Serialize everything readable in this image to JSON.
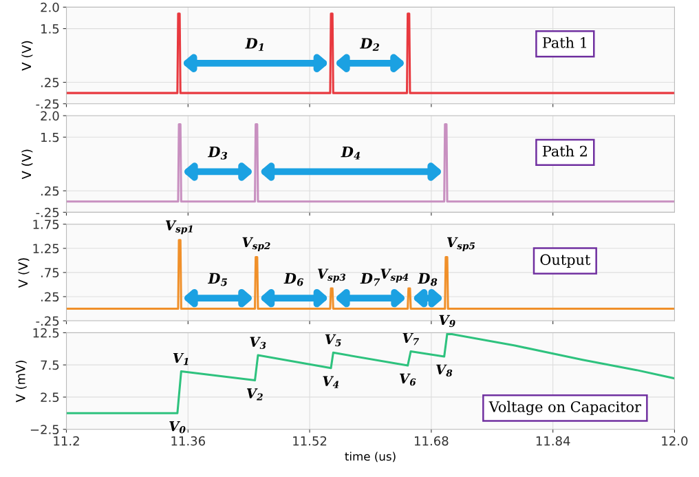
{
  "chart_data": [
    {
      "type": "line",
      "ylabel": "V (V)",
      "xlim": [
        11.2,
        12.0
      ],
      "xticks": [
        11.2,
        11.36,
        11.52,
        11.68,
        11.84
      ],
      "ylim": [
        -0.25,
        2.0
      ],
      "yticks": [
        {
          "value": -0.25,
          "label": "-.25"
        },
        {
          "value": 0.25,
          "label": ".25"
        },
        1.5,
        {
          "value": 2.0,
          "label": "2.0"
        }
      ],
      "tick_labels": "y",
      "grid": true,
      "series": [
        {
          "color": "#e8393f",
          "x": [
            11.2,
            11.346,
            11.347,
            11.349,
            11.35,
            11.547,
            11.548,
            11.55,
            11.551,
            11.648,
            11.649,
            11.651,
            11.652,
            12.0
          ],
          "values": [
            0,
            0,
            1.85,
            1.85,
            0,
            0,
            1.85,
            1.85,
            0,
            0,
            1.85,
            1.85,
            0,
            0
          ]
        }
      ],
      "annotations": [
        "D$_{1}$",
        "D$_{2}$",
        "Path 1"
      ]
    },
    {
      "type": "line",
      "ylabel": "V (V)",
      "xlim": [
        11.2,
        12.0
      ],
      "xticks": [
        11.2,
        11.36,
        11.52,
        11.68,
        11.84
      ],
      "ylim": [
        -0.25,
        2.0
      ],
      "yticks": [
        {
          "value": -0.25,
          "label": "-.25"
        },
        {
          "value": 0.25,
          "label": ".25"
        },
        1.5,
        {
          "value": 2.0,
          "label": "2.0"
        }
      ],
      "tick_labels": "y",
      "grid": true,
      "series": [
        {
          "color": "#c890c0",
          "x": [
            11.2,
            11.347,
            11.348,
            11.35,
            11.351,
            11.448,
            11.449,
            11.451,
            11.452,
            11.697,
            11.698,
            11.7,
            11.701,
            12.0
          ],
          "values": [
            0,
            0,
            1.8,
            1.8,
            0,
            0,
            1.8,
            1.8,
            0,
            0,
            1.8,
            1.8,
            0,
            0
          ]
        }
      ],
      "annotations": [
        "D$_{3}$",
        "D$_{4}$",
        "Path 2"
      ]
    },
    {
      "type": "line",
      "ylabel": "V (V)",
      "xlim": [
        11.2,
        12.0
      ],
      "xticks": [
        11.2,
        11.36,
        11.52,
        11.68,
        11.84
      ],
      "ylim": [
        -0.25,
        1.75
      ],
      "yticks": [
        {
          "value": -0.25,
          "label": "-.25"
        },
        {
          "value": 0.25,
          "label": ".25"
        },
        {
          "value": 0.75,
          "label": ".75"
        },
        1.25,
        1.75
      ],
      "tick_labels": "y",
      "grid": true,
      "series": [
        {
          "color": "#f0902a",
          "x": [
            11.2,
            11.347,
            11.348,
            11.35,
            11.351,
            11.448,
            11.449,
            11.451,
            11.452,
            11.547,
            11.548,
            11.55,
            11.551,
            11.649,
            11.65,
            11.652,
            11.653,
            11.698,
            11.699,
            11.701,
            11.702,
            12.0
          ],
          "values": [
            0,
            0,
            1.42,
            1.42,
            0,
            0,
            1.07,
            1.07,
            0,
            0,
            0.42,
            0.42,
            0,
            0,
            0.42,
            0.42,
            0,
            0,
            1.07,
            1.07,
            0,
            0
          ]
        }
      ],
      "annotations": [
        {
          "text": "V$_{sp1}$",
          "x": 11.349,
          "y": 1.42
        },
        {
          "text": "V$_{sp2}$",
          "x": 11.45,
          "y": 1.07
        },
        {
          "text": "V$_{sp3}$",
          "x": 11.549,
          "y": 0.42
        },
        {
          "text": "V$_{sp4}$",
          "x": 11.651,
          "y": 0.42
        },
        {
          "text": "V$_{sp5}$",
          "x": 11.7,
          "y": 1.07
        },
        "D$_{5}$",
        "D$_{6}$",
        "D$_{7}$",
        "D$_{8}$",
        "Output"
      ]
    },
    {
      "type": "line",
      "ylabel": "V (mV)",
      "xlabel": "time (us)",
      "xlim": [
        11.2,
        12.0
      ],
      "xticks": [
        11.2,
        11.36,
        11.52,
        11.68,
        11.84,
        {
          "value": 12.0,
          "label": "12.0"
        }
      ],
      "ylim": [
        -2.5,
        12.5
      ],
      "yticks": [
        {
          "value": -2.5,
          "label": "−2.5"
        },
        2.5,
        7.5,
        12.5
      ],
      "grid": true,
      "series": [
        {
          "color": "#2ec27e",
          "x": [
            11.2,
            11.346,
            11.351,
            11.448,
            11.452,
            11.548,
            11.551,
            11.649,
            11.653,
            11.697,
            11.701,
            11.79,
            11.879,
            11.95,
            12.0
          ],
          "values": [
            0,
            0,
            6.5,
            5.1,
            9.0,
            7.0,
            9.4,
            7.4,
            9.6,
            8.8,
            12.4,
            10.5,
            8.3,
            6.7,
            5.4
          ]
        }
      ],
      "annotations": [
        {
          "text": "V$_{0}$",
          "x": 11.346,
          "y": 0
        },
        {
          "text": "V$_{1}$",
          "x": 11.351,
          "y": 6.5
        },
        {
          "text": "V$_{2}$",
          "x": 11.448,
          "y": 5.1
        },
        {
          "text": "V$_{3}$",
          "x": 11.452,
          "y": 9.0
        },
        {
          "text": "V$_{4}$",
          "x": 11.548,
          "y": 7.0
        },
        {
          "text": "V$_{5}$",
          "x": 11.551,
          "y": 9.4
        },
        {
          "text": "V$_{6}$",
          "x": 11.649,
          "y": 7.4
        },
        {
          "text": "V$_{7}$",
          "x": 11.653,
          "y": 9.6
        },
        {
          "text": "V$_{8}$",
          "x": 11.697,
          "y": 8.8
        },
        {
          "text": "V$_{9}$",
          "x": 11.701,
          "y": 12.4
        },
        "Voltage on Capacitor"
      ]
    }
  ]
}
